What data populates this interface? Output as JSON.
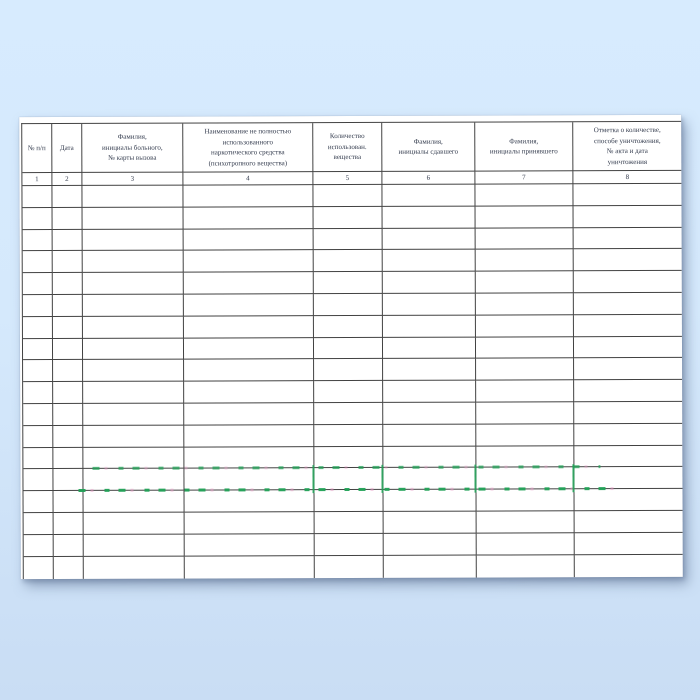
{
  "background": {
    "top_color": "#d7ebfe",
    "bottom_color": "#c9ddf4"
  },
  "paper": {
    "color": "#ffffff",
    "grid_line_color": "#424242",
    "text_color": "#343c4e"
  },
  "table": {
    "columns": [
      {
        "number": "1",
        "header": "№ п/п"
      },
      {
        "number": "2",
        "header": "Дата"
      },
      {
        "number": "3",
        "header": "Фамилия,\nинициалы больного,\n№ карты вызова"
      },
      {
        "number": "4",
        "header": "Наименование не полностью\nиспользованного\nнаркотического средства\n(психотропного вещества)"
      },
      {
        "number": "5",
        "header": "Количество\nиспользован.\nвещества"
      },
      {
        "number": "6",
        "header": "Фамилия,\nинициалы сдавшего"
      },
      {
        "number": "7",
        "header": "Фамилия,\nинициалы принявшего"
      },
      {
        "number": "8",
        "header": "Отметка о количестве,\nспособе уничтожения,\n№ акта и дата\nуничтожения"
      }
    ],
    "empty_rows": 18,
    "cell_values": []
  },
  "watermark": {
    "dash_color": "#21a257",
    "accent_color": "#e7a0c8"
  }
}
